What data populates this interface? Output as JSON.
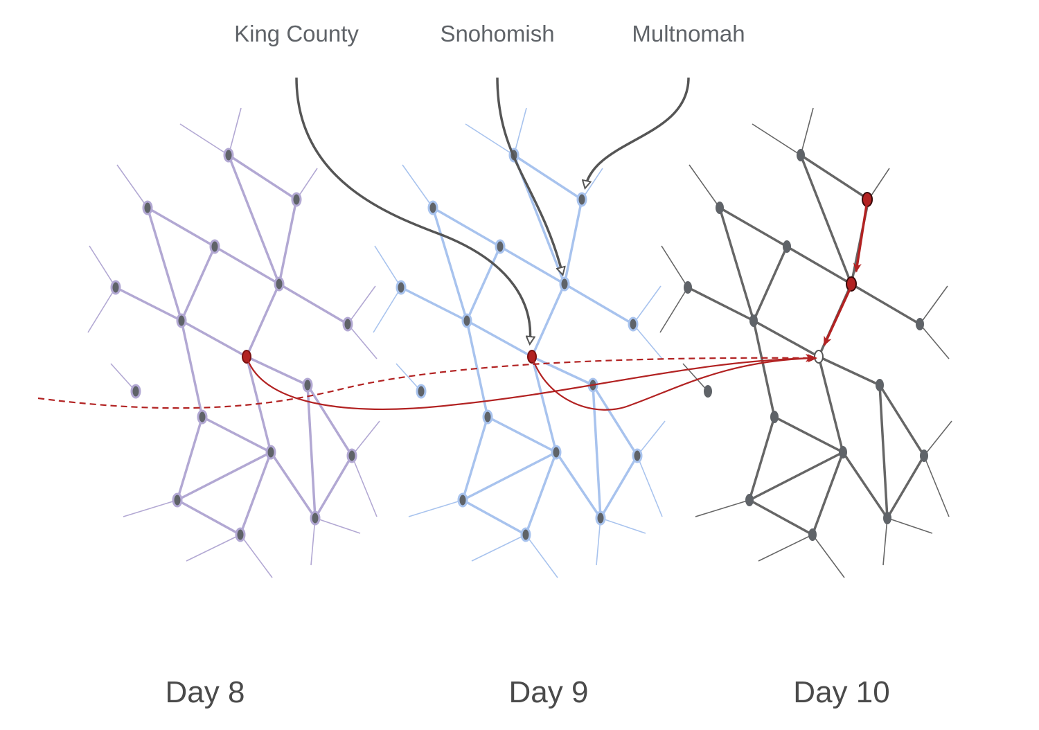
{
  "counties": [
    "King County",
    "Snohomish",
    "Multnomah"
  ],
  "days": [
    "Day 8",
    "Day 9",
    "Day 10"
  ],
  "colors": {
    "day8_graph": "#b2a8d3",
    "day9_graph": "#a8c3ee",
    "day10_graph": "#666666",
    "node_fill": "#5f6368",
    "arrow": "#555555",
    "highlight": "#b22222"
  }
}
